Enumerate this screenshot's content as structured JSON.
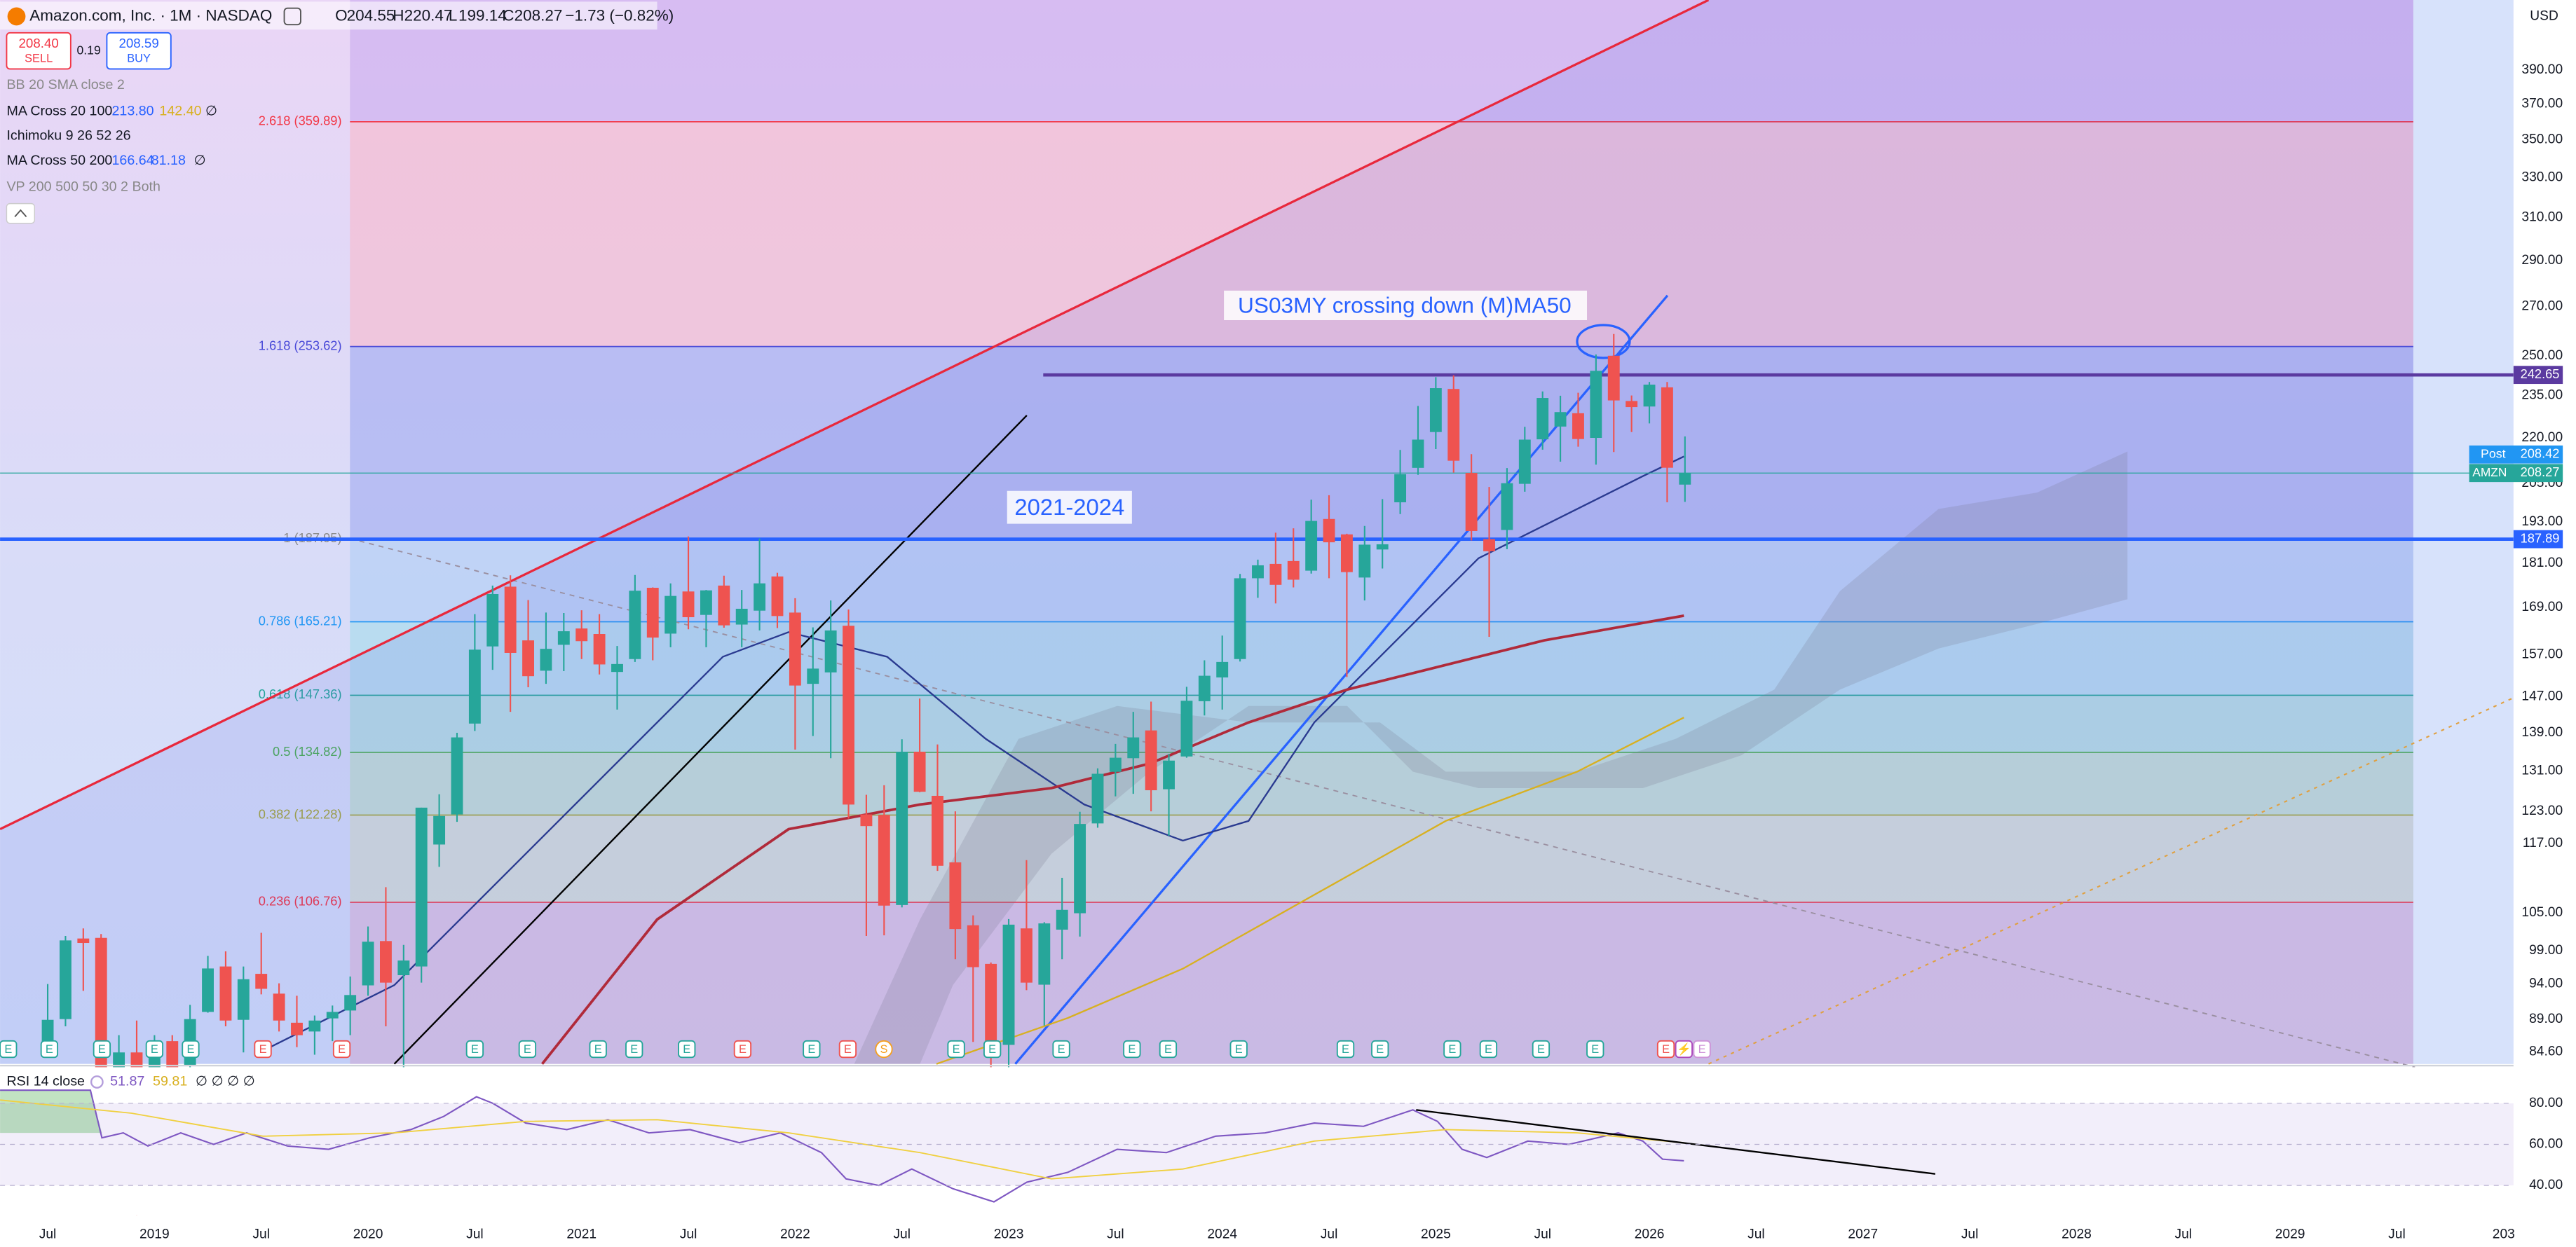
{
  "header": {
    "symbol": "Amazon.com, Inc. · 1M · NASDAQ",
    "o_label": "O",
    "open": "204.55",
    "h_label": "H",
    "high": "220.47",
    "l_label": "L",
    "low": "199.14",
    "c_label": "C",
    "close": "208.27",
    "change": "−1.73 (−0.82%)",
    "sell_price": "208.40",
    "sell": "SELL",
    "spread": "0.19",
    "buy_price": "208.59",
    "buy": "BUY",
    "currency": "USD"
  },
  "indicators": {
    "bb": "BB 20 SMA close 2",
    "ma_cross_1": "MA Cross 20 100",
    "ma_cross_1_a": "213.80",
    "ma_cross_1_b": "142.40",
    "ma_cross_1_c": "∅",
    "ichimoku": "Ichimoku 9 26 52 26",
    "ma_cross_2": "MA Cross 50 200",
    "ma_cross_2_a": "166.64",
    "ma_cross_2_b": "81.18",
    "ma_cross_2_c": "∅",
    "vp": "VP 200 500 50 30 2 Both"
  },
  "annotations": {
    "us03my": "US03MY crossing down (M)MA50",
    "period": "2021-2024"
  },
  "chart_data": {
    "type": "candlestick",
    "log_scale": true,
    "up_color": "#26a69a",
    "down_color": "#ef5350",
    "x": [
      "2018-07",
      "2018-08",
      "2018-09",
      "2018-10",
      "2018-11",
      "2018-12",
      "2019-01",
      "2019-02",
      "2019-03",
      "2019-04",
      "2019-05",
      "2019-06",
      "2019-07",
      "2019-08",
      "2019-09",
      "2019-10",
      "2019-11",
      "2019-12",
      "2020-01",
      "2020-02",
      "2020-03",
      "2020-04",
      "2020-05",
      "2020-06",
      "2020-07",
      "2020-08",
      "2020-09",
      "2020-10",
      "2020-11",
      "2020-12",
      "2021-01",
      "2021-02",
      "2021-03",
      "2021-04",
      "2021-05",
      "2021-06",
      "2021-07",
      "2021-08",
      "2021-09",
      "2021-10",
      "2021-11",
      "2021-12",
      "2022-01",
      "2022-02",
      "2022-03",
      "2022-04",
      "2022-05",
      "2022-06",
      "2022-07",
      "2022-08",
      "2022-09",
      "2022-10",
      "2022-11",
      "2022-12",
      "2023-01",
      "2023-02",
      "2023-03",
      "2023-04",
      "2023-05",
      "2023-06",
      "2023-07",
      "2023-08",
      "2023-09",
      "2023-10",
      "2023-11",
      "2023-12",
      "2024-01",
      "2024-02",
      "2024-03",
      "2024-04",
      "2024-05",
      "2024-06",
      "2024-07",
      "2024-08",
      "2024-09",
      "2024-10",
      "2024-11",
      "2024-12",
      "2025-01",
      "2025-02",
      "2025-03",
      "2025-04",
      "2025-05",
      "2025-06",
      "2025-07",
      "2025-08",
      "2025-09",
      "2025-10",
      "2025-11",
      "2025-12",
      "2026-01",
      "2026-02",
      "2026-03"
    ],
    "open": [
      85.6,
      89.0,
      100.9,
      101.0,
      80.3,
      84.5,
      73.3,
      86.0,
      82.8,
      90.0,
      96.6,
      88.9,
      95.5,
      92.6,
      88.5,
      87.3,
      89.1,
      90.2,
      93.8,
      100.5,
      95.3,
      96.6,
      116.8,
      122.4,
      141.0,
      159.0,
      174.5,
      160.5,
      153.1,
      159.4,
      163.5,
      162.1,
      152.8,
      155.9,
      174.2,
      162.2,
      173.2,
      167.0,
      174.8,
      164.5,
      168.1,
      177.3,
      167.6,
      150.0,
      152.7,
      164.2,
      122.4,
      122.3,
      106.3,
      134.96,
      126.0,
      113.6,
      103.0,
      96.99,
      85.5,
      102.5,
      93.9,
      102.3,
      104.95,
      120.7,
      130.8,
      133.6,
      139.5,
      127.3,
      133.96,
      146.0,
      151.5,
      155.9,
      176.8,
      180.8,
      181.6,
      178.9,
      193.9,
      189.3,
      177.0,
      184.9,
      199.0,
      209.96,
      222.0,
      237.4,
      208.3,
      187.9,
      190.6,
      204.8,
      219.5,
      223.9,
      228.6,
      220.0,
      250.0,
      233.0,
      231.0,
      238.0,
      204.55
    ],
    "high": [
      94.0,
      101.3,
      102.5,
      101.6,
      86.8,
      88.8,
      86.8,
      86.8,
      91.0,
      98.2,
      98.9,
      96.6,
      101.8,
      94.1,
      92.3,
      89.5,
      90.9,
      95.1,
      102.8,
      109.3,
      99.9,
      123.7,
      126.3,
      139.0,
      167.2,
      174.8,
      177.6,
      170.9,
      167.6,
      167.5,
      168.2,
      167.2,
      159.1,
      177.7,
      174.3,
      175.4,
      188.7,
      173.6,
      177.5,
      173.6,
      188.1,
      178.3,
      171.4,
      163.8,
      170.8,
      168.4,
      126.2,
      128.1,
      137.6,
      146.6,
      136.5,
      123.0,
      104.6,
      97.2,
      104.0,
      114.0,
      103.5,
      110.9,
      122.9,
      131.5,
      136.6,
      143.6,
      145.9,
      134.5,
      149.3,
      155.6,
      161.7,
      178.0,
      182.0,
      189.8,
      191.1,
      199.8,
      201.2,
      189.5,
      191.8,
      200.0,
      215.9,
      231.2,
      241.8,
      242.5,
      214.5,
      203.8,
      209.9,
      223.8,
      236.5,
      234.9,
      236.0,
      250.5,
      258.6,
      235.0,
      240.0,
      240.0,
      220.47
    ],
    "low": [
      84.0,
      88.0,
      93.0,
      73.8,
      70.7,
      65.4,
      73.0,
      78.9,
      80.9,
      89.9,
      88.0,
      84.5,
      92.5,
      87.3,
      85.2,
      84.2,
      86.0,
      86.8,
      92.3,
      88.0,
      81.3,
      94.2,
      112.8,
      121.0,
      139.4,
      153.3,
      143.6,
      149.2,
      150.0,
      153.0,
      155.9,
      152.2,
      144.1,
      155.2,
      155.6,
      158.8,
      163.3,
      158.8,
      163.7,
      158.8,
      163.0,
      163.6,
      135.4,
      138.3,
      133.6,
      121.6,
      101.3,
      101.4,
      105.9,
      126.7,
      112.1,
      97.7,
      85.9,
      81.7,
      81.4,
      93.1,
      88.1,
      97.7,
      101.2,
      119.9,
      125.9,
      126.4,
      123.0,
      118.4,
      133.7,
      142.8,
      144.1,
      155.3,
      171.5,
      170.0,
      174.3,
      178.1,
      176.8,
      151.6,
      170.8,
      179.5,
      195.4,
      207.7,
      216.2,
      208.4,
      187.5,
      161.4,
      185.0,
      202.3,
      216.0,
      212.0,
      217.0,
      211.0,
      215.2,
      222.0,
      225.0,
      199.0,
      199.14
    ],
    "close": [
      88.9,
      100.6,
      100.2,
      79.9,
      84.5,
      75.1,
      85.9,
      81.99,
      89.0,
      96.3,
      88.8,
      94.7,
      93.3,
      88.8,
      86.8,
      88.8,
      90.0,
      92.4,
      100.4,
      94.2,
      97.5,
      123.7,
      122.1,
      138.0,
      158.2,
      172.5,
      157.4,
      151.8,
      158.4,
      162.8,
      160.3,
      154.6,
      154.7,
      173.4,
      161.2,
      172.0,
      166.4,
      173.5,
      164.3,
      168.6,
      175.4,
      166.7,
      149.6,
      153.6,
      163.0,
      124.3,
      120.2,
      106.2,
      134.95,
      126.8,
      113.0,
      102.4,
      96.5,
      84.0,
      103.1,
      94.2,
      103.3,
      105.5,
      120.6,
      130.4,
      133.7,
      138.0,
      127.1,
      133.1,
      146.1,
      151.9,
      155.2,
      176.8,
      180.4,
      175.0,
      176.4,
      193.3,
      186.98,
      178.5,
      186.3,
      186.4,
      207.9,
      219.4,
      237.7,
      212.3,
      190.3,
      184.4,
      205.0,
      219.4,
      234.1,
      229.0,
      219.6,
      244.2,
      233.2,
      230.8,
      239.0,
      210.0,
      208.27
    ],
    "ylim": [
      83,
      435
    ],
    "yticks": [
      {
        "value": 390,
        "label": "390.00"
      },
      {
        "value": 370,
        "label": "370.00"
      },
      {
        "value": 350,
        "label": "350.00"
      },
      {
        "value": 330,
        "label": "330.00"
      },
      {
        "value": 310,
        "label": "310.00"
      },
      {
        "value": 290,
        "label": "290.00"
      },
      {
        "value": 270,
        "label": "270.00"
      },
      {
        "value": 250,
        "label": "250.00"
      },
      {
        "value": 235,
        "label": "235.00"
      },
      {
        "value": 220,
        "label": "220.00"
      },
      {
        "value": 205,
        "label": "205.00"
      },
      {
        "value": 193,
        "label": "193.00"
      },
      {
        "value": 181,
        "label": "181.00"
      },
      {
        "value": 169,
        "label": "169.00"
      },
      {
        "value": 157,
        "label": "157.00"
      },
      {
        "value": 147,
        "label": "147.00"
      },
      {
        "value": 139,
        "label": "139.00"
      },
      {
        "value": 131,
        "label": "131.00"
      },
      {
        "value": 123,
        "label": "123.00"
      },
      {
        "value": 117,
        "label": "117.00"
      },
      {
        "value": 105,
        "label": "105.00"
      },
      {
        "value": 99,
        "label": "99.00"
      },
      {
        "value": 94,
        "label": "94.00"
      },
      {
        "value": 89,
        "label": "89.00"
      },
      {
        "value": 84.6,
        "label": "84.60"
      }
    ],
    "xticks": [
      "Jul",
      "2019",
      "Jul",
      "2020",
      "Jul",
      "2021",
      "Jul",
      "2022",
      "Jul",
      "2023",
      "Jul",
      "2024",
      "Jul",
      "2025",
      "Jul",
      "2026",
      "Jul",
      "2027",
      "Jul",
      "2028",
      "Jul",
      "2029",
      "Jul",
      "203"
    ]
  },
  "fibonacci": [
    {
      "label": "2.618 (359.89)",
      "price": 359.89,
      "color": "#f23645"
    },
    {
      "label": "1.618 (253.62)",
      "price": 253.62,
      "color": "#4a4ad8"
    },
    {
      "label": "1 (187.95)",
      "price": 187.95,
      "color": "#8a8a8a"
    },
    {
      "label": "0.786 (165.21)",
      "price": 165.21,
      "color": "#2196f3"
    },
    {
      "label": "0.618 (147.36)",
      "price": 147.36,
      "color": "#26a69a"
    },
    {
      "label": "0.5 (134.82)",
      "price": 134.82,
      "color": "#4caf50"
    },
    {
      "label": "0.382 (122.28)",
      "price": 122.28,
      "color": "#a5a83a"
    },
    {
      "label": "0.236 (106.76)",
      "price": 106.76,
      "color": "#f23645"
    }
  ],
  "price_lines": [
    {
      "value": 242.65,
      "color": "#5b3aa0"
    },
    {
      "value": 187.89,
      "color": "#2962ff"
    }
  ],
  "post": {
    "label": "Post",
    "value": 208.42
  },
  "last": {
    "label": "AMZN",
    "value": 208.27
  },
  "events": [
    "E",
    "E",
    "E",
    "E",
    "E",
    "E",
    "E",
    "E",
    "E",
    "E",
    "E",
    "E",
    "E",
    "E",
    "E",
    "S",
    "E",
    "E",
    "E",
    "E",
    "E",
    "E",
    "E",
    "E",
    "E",
    "E",
    "E",
    "E",
    "E",
    "⚡",
    "E"
  ],
  "rsi": {
    "title": "RSI 14 close",
    "value": "51.87",
    "ma": "59.81",
    "extra": "∅ ∅ ∅ ∅",
    "ylim": [
      25.6,
      97.6
    ],
    "yticks": [
      {
        "value": 80,
        "label": "80.00"
      },
      {
        "value": 60,
        "label": "60.00"
      },
      {
        "value": 40,
        "label": "40.00"
      }
    ]
  }
}
